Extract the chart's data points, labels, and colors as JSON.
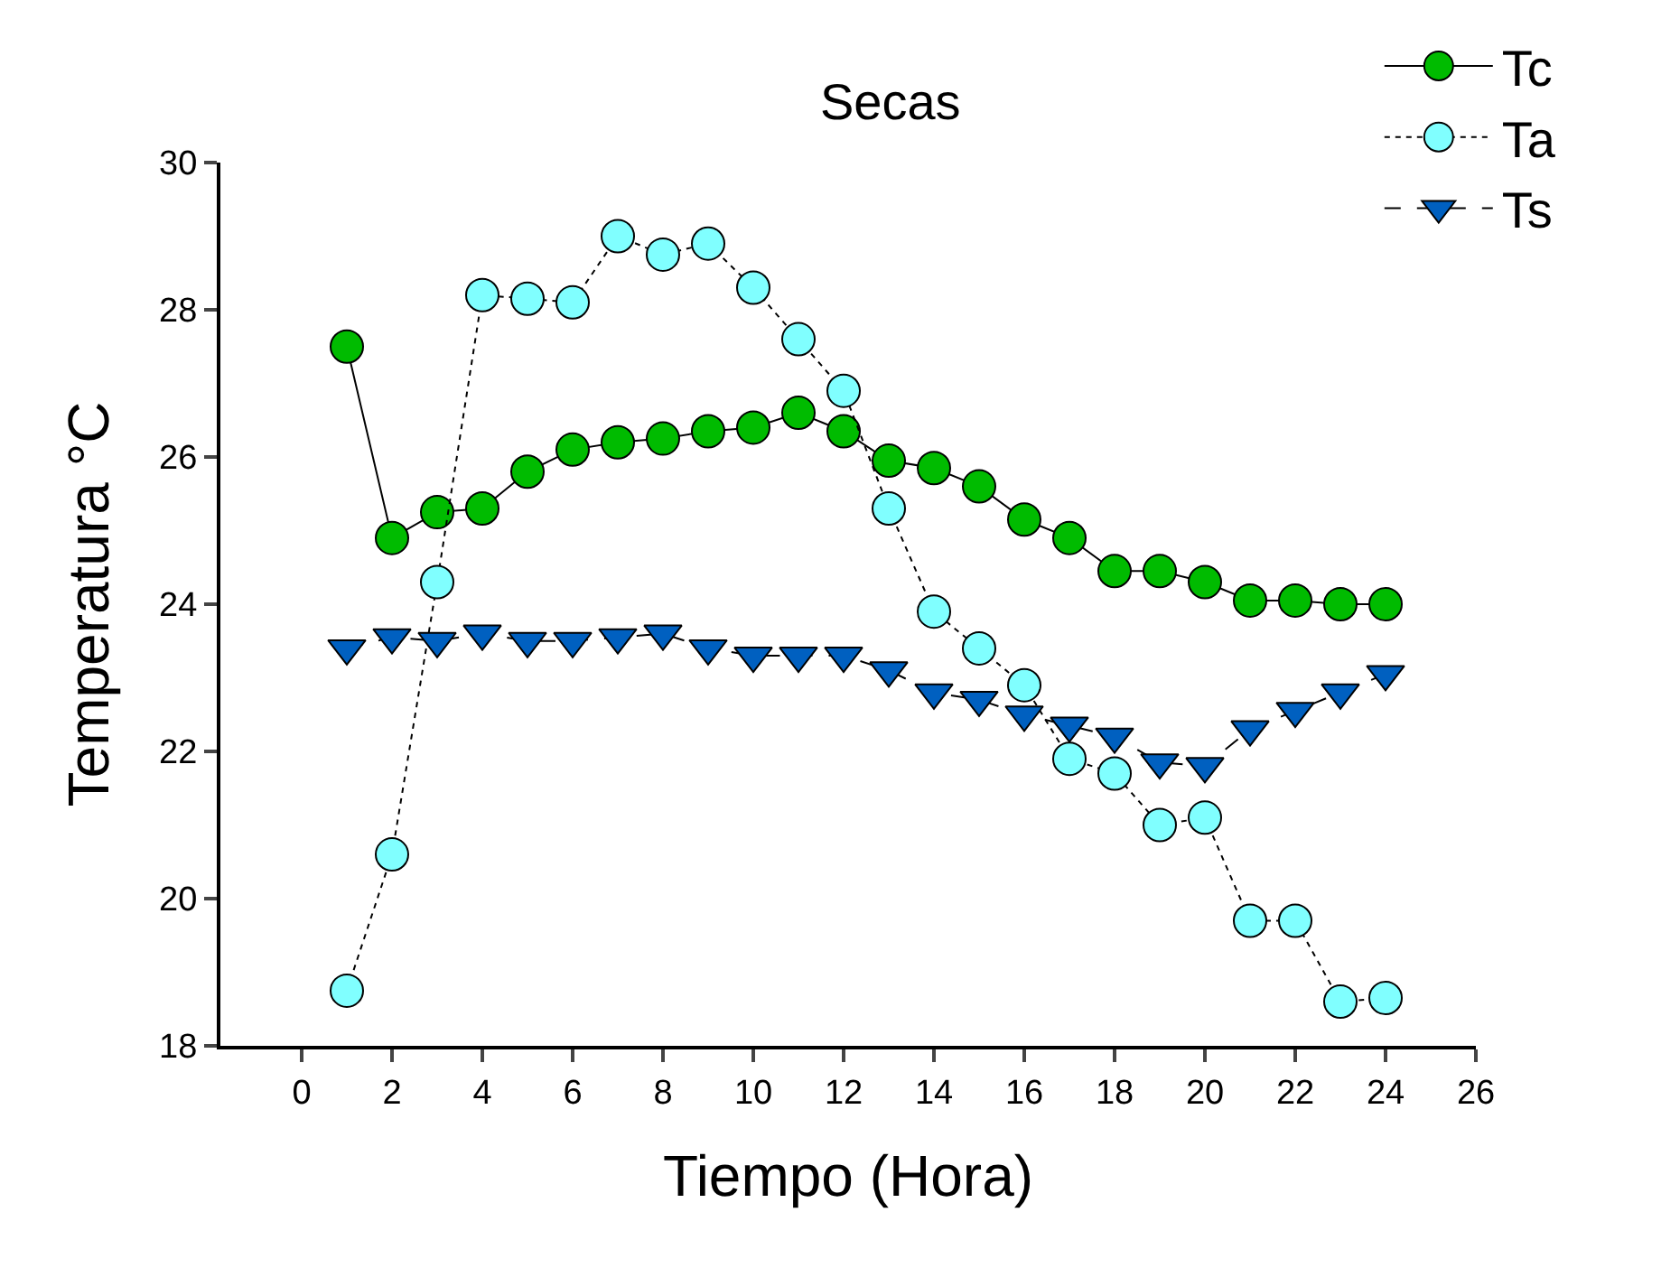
{
  "chart_data": {
    "type": "line",
    "title": "Secas",
    "xlabel": "Tiempo (Hora)",
    "ylabel": "Temperatura °C",
    "x": [
      1,
      2,
      3,
      4,
      5,
      6,
      7,
      8,
      9,
      10,
      11,
      12,
      13,
      14,
      15,
      16,
      17,
      18,
      19,
      20,
      21,
      22,
      23,
      24
    ],
    "series": [
      {
        "name": "Tc",
        "color": "#00bb00",
        "marker": "circle",
        "line_style": "solid",
        "values": [
          27.5,
          24.9,
          25.25,
          25.3,
          25.8,
          26.1,
          26.2,
          26.25,
          26.35,
          26.4,
          26.6,
          26.35,
          25.95,
          25.85,
          25.6,
          25.15,
          24.9,
          24.45,
          24.45,
          24.3,
          24.05,
          24.05,
          24.0,
          24.0
        ]
      },
      {
        "name": "Ta",
        "color": "#80ffff",
        "marker": "circle",
        "line_style": "dotted",
        "values": [
          18.75,
          20.6,
          24.3,
          28.2,
          28.15,
          28.1,
          29.0,
          28.75,
          28.9,
          28.3,
          27.6,
          26.9,
          25.3,
          23.9,
          23.4,
          22.9,
          21.9,
          21.7,
          21.0,
          21.1,
          19.7,
          19.7,
          18.6,
          18.65
        ]
      },
      {
        "name": "Ts",
        "color": "#0060c0",
        "marker": "triangle",
        "line_style": "dashed",
        "values": [
          23.4,
          23.55,
          23.5,
          23.6,
          23.5,
          23.5,
          23.55,
          23.6,
          23.4,
          23.3,
          23.3,
          23.3,
          23.1,
          22.8,
          22.7,
          22.5,
          22.35,
          22.2,
          21.85,
          21.8,
          22.3,
          22.55,
          22.8,
          23.05
        ]
      }
    ],
    "xlim": [
      -1.8,
      26
    ],
    "xticks": [
      0,
      2,
      4,
      6,
      8,
      10,
      12,
      14,
      16,
      18,
      20,
      22,
      24,
      26
    ],
    "ylim": [
      18,
      30
    ],
    "yticks": [
      18,
      20,
      22,
      24,
      26,
      28,
      30
    ],
    "grid": false,
    "legend": "top right"
  }
}
